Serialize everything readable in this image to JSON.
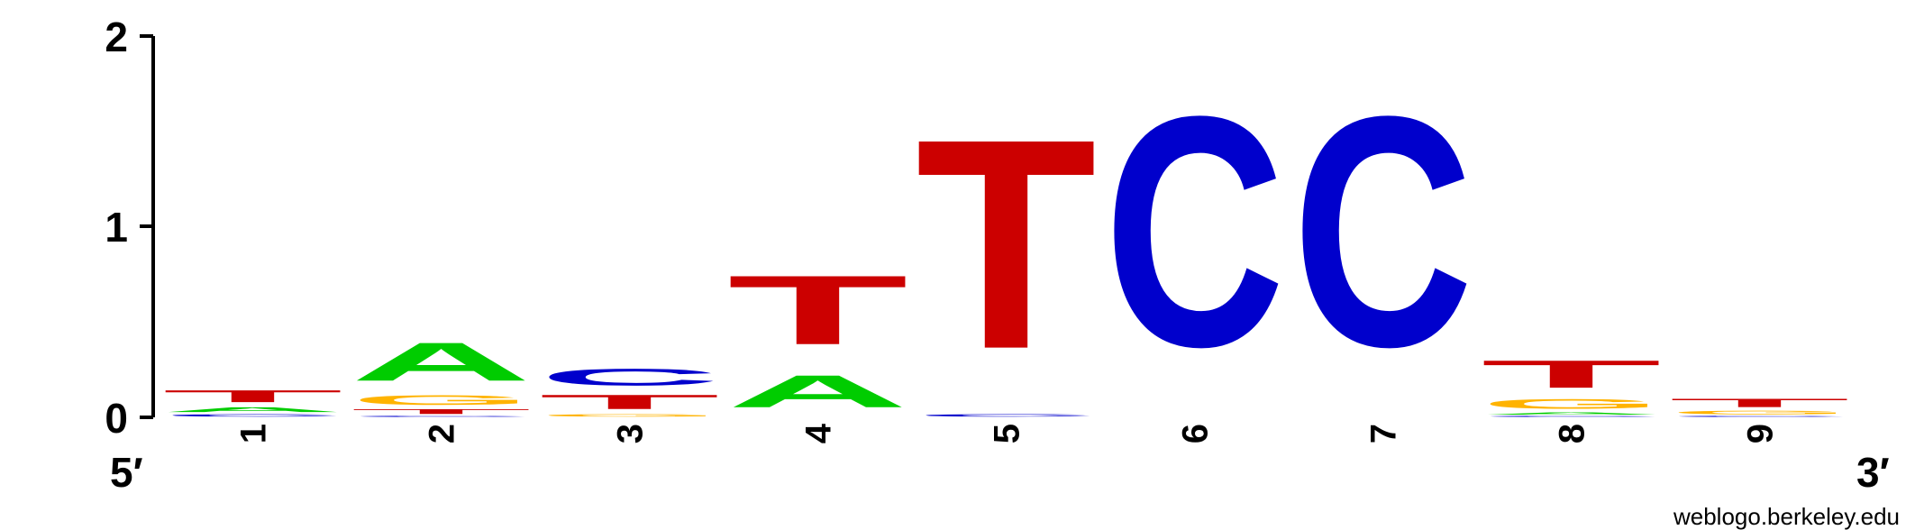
{
  "chart_data": {
    "type": "sequence-logo",
    "ylim": [
      0,
      2
    ],
    "y_ticks": [
      "0",
      "1",
      "2"
    ],
    "positions": [
      "1",
      "2",
      "3",
      "4",
      "5",
      "6",
      "7",
      "8",
      "9"
    ],
    "end_labels": {
      "left": "5′",
      "right": "3′"
    },
    "credit": "weblogo.berkeley.edu",
    "colors": {
      "A": "#00cc00",
      "C": "#0000cc",
      "G": "#ffb300",
      "T": "#cc0000"
    },
    "columns": [
      [
        {
          "base": "C",
          "height": 0.02
        },
        {
          "base": "A",
          "height": 0.04
        },
        {
          "base": "T",
          "height": 0.1
        }
      ],
      [
        {
          "base": "C",
          "height": 0.01
        },
        {
          "base": "T",
          "height": 0.04
        },
        {
          "base": "G",
          "height": 0.08
        },
        {
          "base": "A",
          "height": 0.32
        }
      ],
      [
        {
          "base": "G",
          "height": 0.02
        },
        {
          "base": "T",
          "height": 0.12
        },
        {
          "base": "C",
          "height": 0.14
        }
      ],
      [
        {
          "base": "A",
          "height": 0.27
        },
        {
          "base": "T",
          "height": 0.58
        }
      ],
      [
        {
          "base": "C",
          "height": 0.02
        },
        {
          "base": "T",
          "height": 1.76
        }
      ],
      [
        {
          "base": "C",
          "height": 1.93
        }
      ],
      [
        {
          "base": "C",
          "height": 1.93
        }
      ],
      [
        {
          "base": "C",
          "height": 0.01
        },
        {
          "base": "A",
          "height": 0.02
        },
        {
          "base": "G",
          "height": 0.08
        },
        {
          "base": "T",
          "height": 0.23
        }
      ],
      [
        {
          "base": "C",
          "height": 0.01
        },
        {
          "base": "G",
          "height": 0.03
        },
        {
          "base": "T",
          "height": 0.07
        }
      ]
    ]
  }
}
